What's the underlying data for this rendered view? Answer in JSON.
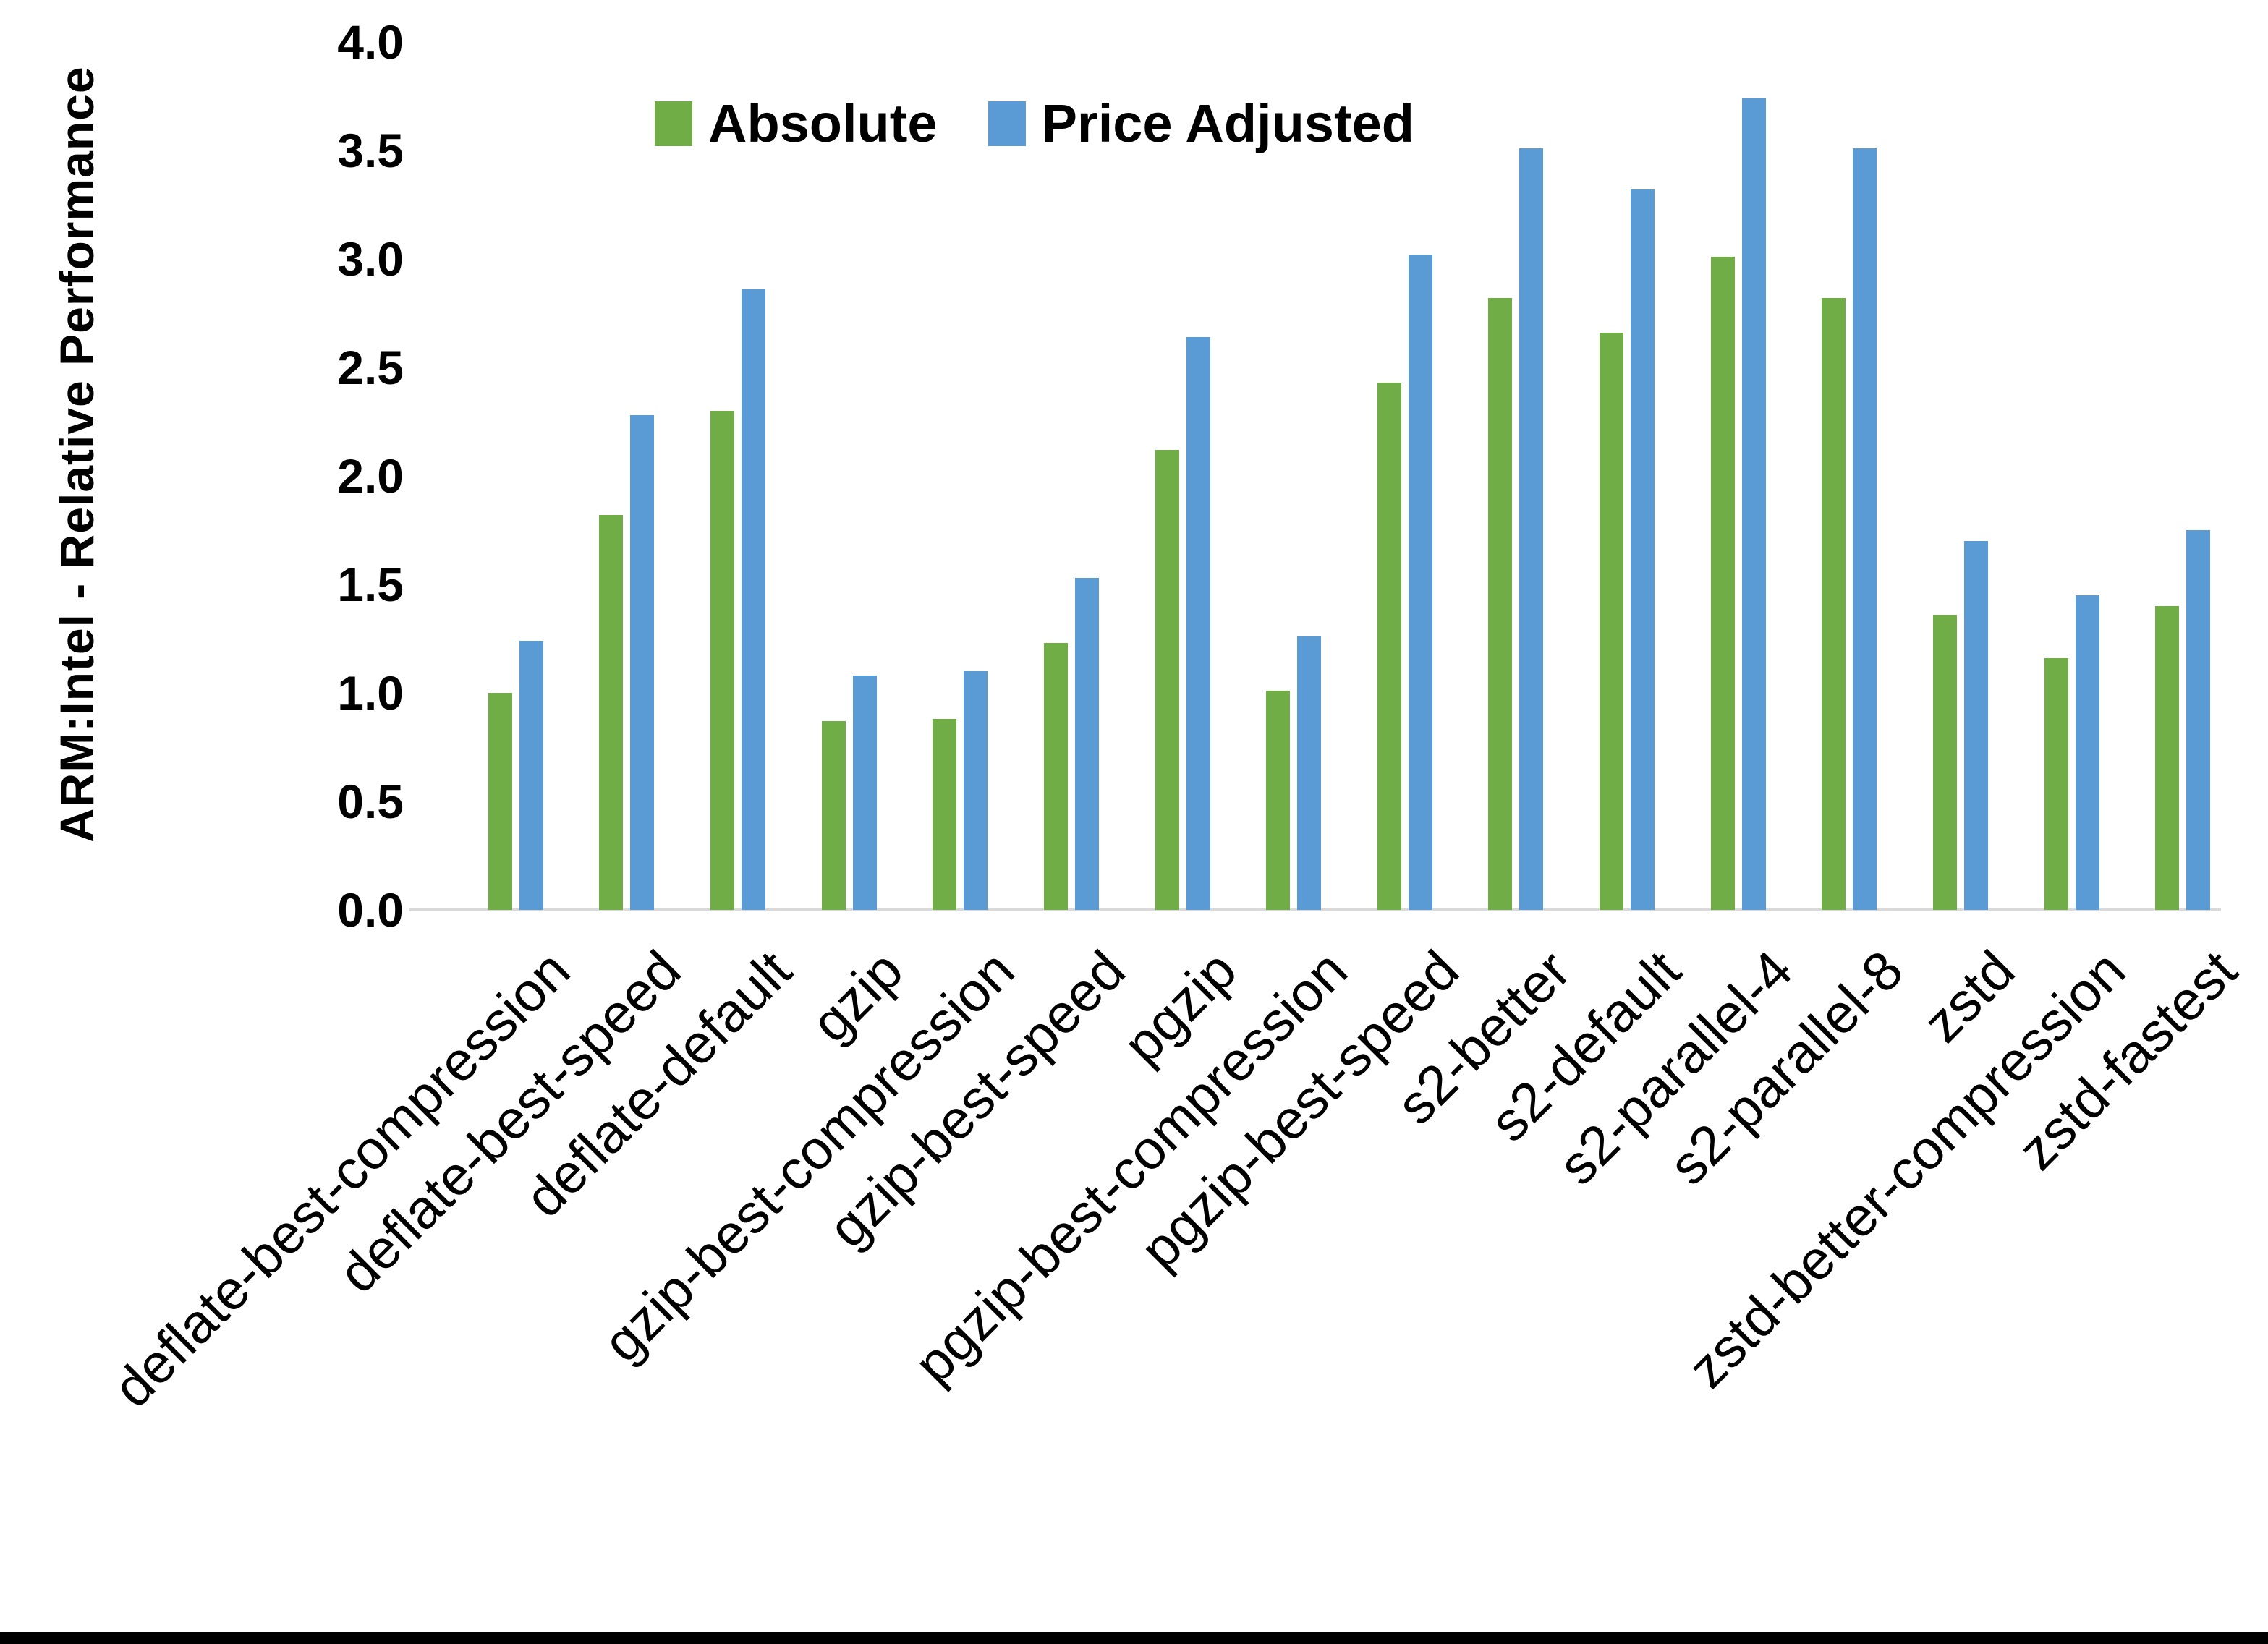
{
  "chart_data": {
    "type": "bar",
    "title": "",
    "ylabel": "ARM:Intel - Relative Performance",
    "xlabel": "",
    "ylim": [
      0.0,
      4.0
    ],
    "ytick_step": 0.5,
    "ytick_labels": [
      "0.0",
      "0.5",
      "1.0",
      "1.5",
      "2.0",
      "2.5",
      "3.0",
      "3.5",
      "4.0"
    ],
    "grid": false,
    "legend_position": "top-center",
    "categories": [
      "deflate-best-compression",
      "deflate-best-speed",
      "deflate-default",
      "gzip",
      "gzip-best-compression",
      "gzip-best-speed",
      "pgzip",
      "pgzip-best-compression",
      "pgzip-best-speed",
      "s2-better",
      "s2-default",
      "s2-parallel-4",
      "s2-parallel-8",
      "zstd",
      "zstd-better-compression",
      "zstd-fastest"
    ],
    "series": [
      {
        "name": "Absolute",
        "color": "#70AD47",
        "values": [
          1.0,
          1.82,
          2.3,
          0.87,
          0.88,
          1.23,
          2.12,
          1.01,
          2.43,
          2.82,
          2.66,
          3.01,
          2.82,
          1.36,
          1.16,
          1.4
        ]
      },
      {
        "name": "Price Adjusted",
        "color": "#5B9BD5",
        "values": [
          1.24,
          2.28,
          2.86,
          1.08,
          1.1,
          1.53,
          2.64,
          1.26,
          3.02,
          3.51,
          3.32,
          3.74,
          3.51,
          1.7,
          1.45,
          1.75
        ]
      }
    ],
    "axis_line_color": "#D9D9D9",
    "text_color": "#000000"
  }
}
